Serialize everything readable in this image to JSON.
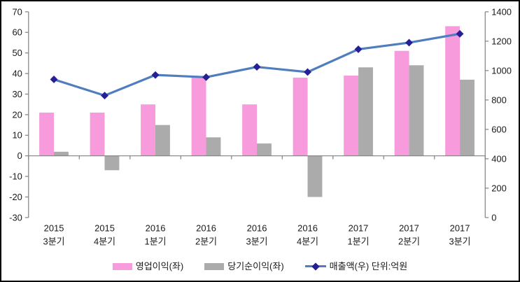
{
  "chart_data": {
    "type": "bar",
    "subtype": "combo-bar-line-dual-axis",
    "title": "",
    "categories": [
      {
        "year": "2015",
        "quarter": "3분기"
      },
      {
        "year": "2015",
        "quarter": "4분기"
      },
      {
        "year": "2016",
        "quarter": "1분기"
      },
      {
        "year": "2016",
        "quarter": "2분기"
      },
      {
        "year": "2016",
        "quarter": "3분기"
      },
      {
        "year": "2016",
        "quarter": "4분기"
      },
      {
        "year": "2017",
        "quarter": "1분기"
      },
      {
        "year": "2017",
        "quarter": "2분기"
      },
      {
        "year": "2017",
        "quarter": "3분기"
      }
    ],
    "series": [
      {
        "name": "영업이익(좌)",
        "type": "bar",
        "axis": "left",
        "color": "#f79bdc",
        "values": [
          21,
          21,
          25,
          38,
          25,
          38,
          39,
          51,
          63
        ]
      },
      {
        "name": "당기순이익(좌)",
        "type": "bar",
        "axis": "left",
        "color": "#ababab",
        "values": [
          2,
          -7,
          15,
          9,
          6,
          -20,
          43,
          44,
          37
        ]
      },
      {
        "name": "매출액(우) 단위:억원",
        "type": "line",
        "axis": "right",
        "color": "#4f7dbe",
        "marker": "diamond",
        "marker_color": "#262096",
        "values": [
          940,
          830,
          970,
          955,
          1025,
          990,
          1145,
          1190,
          1250
        ]
      }
    ],
    "left_axis": {
      "min": -30,
      "max": 70,
      "step": 10,
      "tick_labels": [
        "70",
        "60",
        "50",
        "40",
        "30",
        "20",
        "10",
        "0",
        "-10",
        "-20",
        "-30"
      ]
    },
    "right_axis": {
      "min": 0,
      "max": 1400,
      "step": 200,
      "tick_labels": [
        "1400",
        "1200",
        "1000",
        "800",
        "600",
        "400",
        "200",
        "0"
      ]
    },
    "grid": false,
    "legend_position": "bottom",
    "colors": {
      "axis_line": "#808080",
      "text": "#1a1a1a",
      "background": "#ffffff",
      "border": "#000000"
    }
  }
}
